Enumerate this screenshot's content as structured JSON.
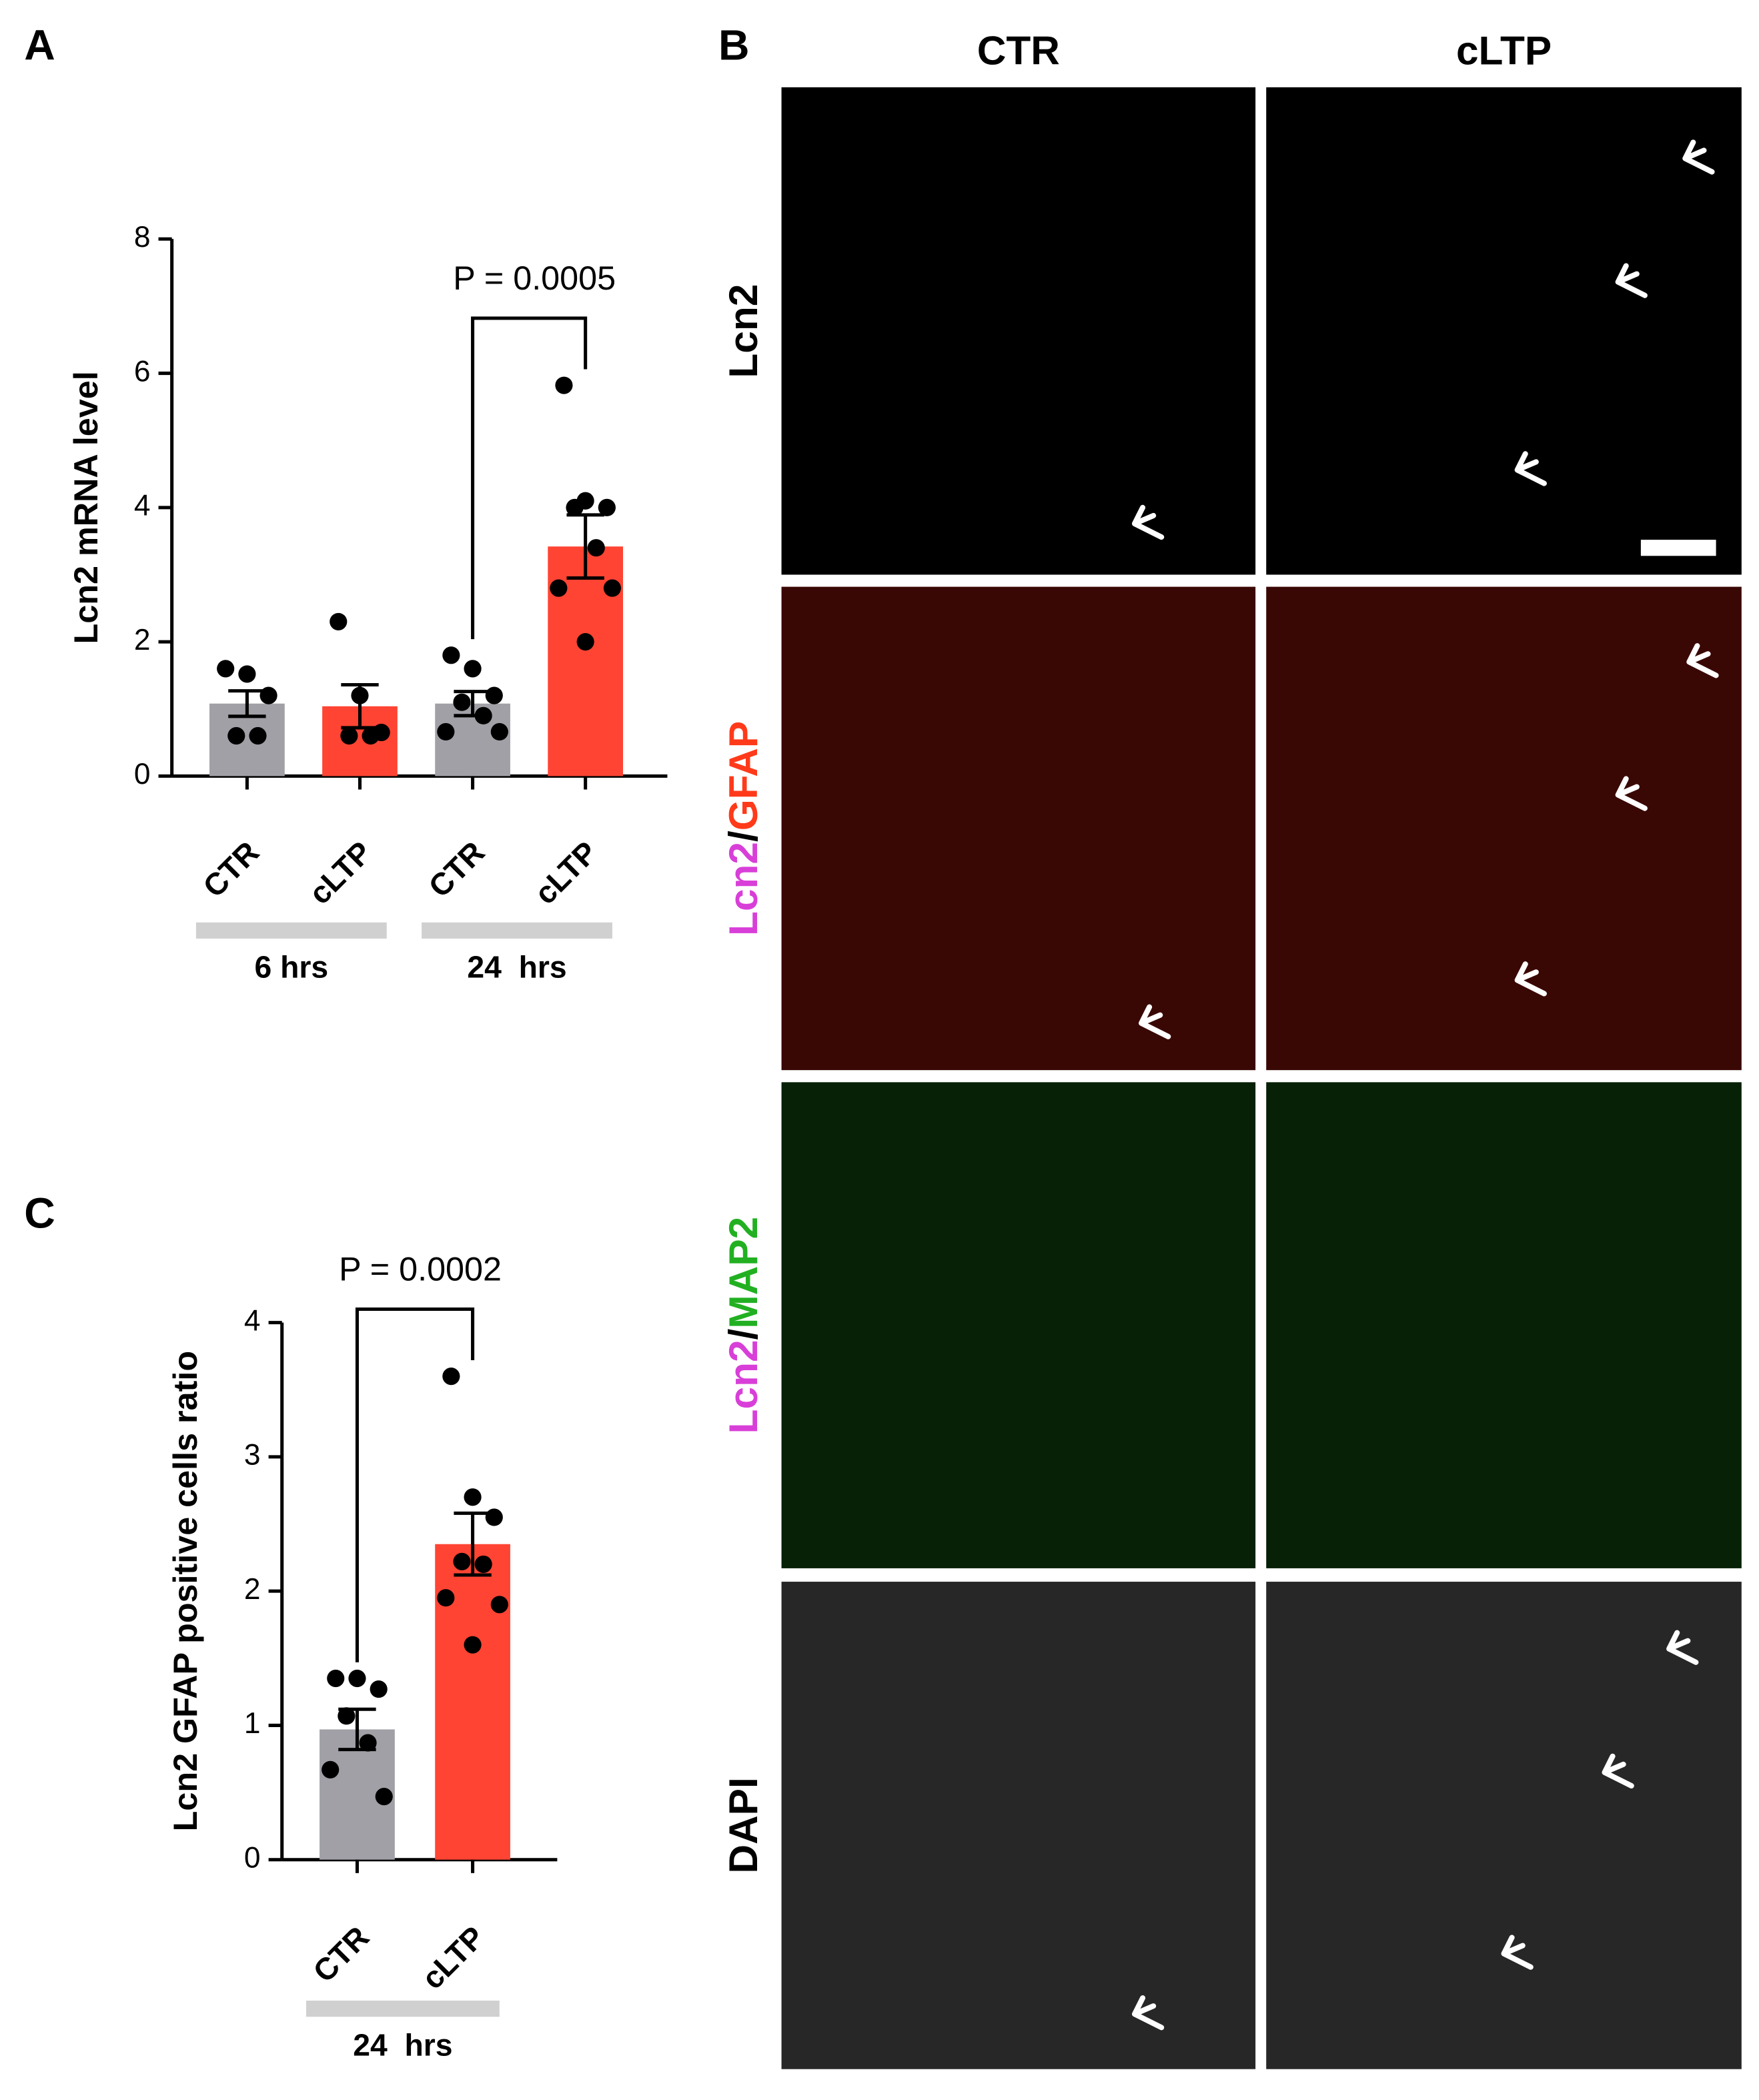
{
  "panel_labels": [
    "A",
    "B",
    "C"
  ],
  "chart_data": [
    {
      "type": "bar",
      "ylabel": "Lcn2 mRNA level",
      "categories": [
        "CTR",
        "cLTP",
        "CTR",
        "cLTP"
      ],
      "groups": [
        "6 hrs",
        "24  hrs"
      ],
      "values": [
        1.08,
        1.04,
        1.08,
        3.42
      ],
      "errors": [
        0.19,
        0.32,
        0.18,
        0.47
      ],
      "colors": [
        "#a0a0a6",
        "#ff4433",
        "#a0a0a6",
        "#ff4433"
      ],
      "points": [
        [
          1.6,
          1.52,
          1.2,
          0.6,
          0.6
        ],
        [
          2.3,
          1.2,
          0.65,
          0.6,
          0.6
        ],
        [
          1.8,
          1.6,
          1.2,
          1.1,
          0.9,
          0.66,
          0.66
        ],
        [
          5.82,
          4.1,
          4.0,
          4.0,
          3.4,
          2.8,
          2.8,
          2.0
        ]
      ],
      "annotation": "P = 0.0005",
      "ylim": [
        0,
        8
      ],
      "yticks": [
        0,
        2,
        4,
        6,
        8
      ]
    },
    {
      "type": "bar",
      "ylabel": "Lcn2 GFAP positive cells ratio",
      "categories": [
        "CTR",
        "cLTP"
      ],
      "groups": [
        "24  hrs"
      ],
      "values": [
        0.97,
        2.35
      ],
      "errors": [
        0.15,
        0.23
      ],
      "colors": [
        "#a0a0a6",
        "#ff4433"
      ],
      "points": [
        [
          1.35,
          1.35,
          1.27,
          1.07,
          0.87,
          0.67,
          0.47
        ],
        [
          3.6,
          2.7,
          2.55,
          2.22,
          2.2,
          1.95,
          1.9,
          1.6
        ]
      ],
      "annotation": "P = 0.0002",
      "ylim": [
        0,
        4
      ],
      "yticks": [
        0,
        1,
        2,
        3,
        4
      ]
    }
  ],
  "micrographs": {
    "columns": [
      "CTR",
      "cLTP"
    ],
    "rows": [
      {
        "parts": [
          "Lcn2"
        ],
        "colors": [
          "#000000"
        ],
        "background": "#000000"
      },
      {
        "parts": [
          "Lcn2",
          "/",
          "GFAP"
        ],
        "colors": [
          "#d83fd8",
          "#000000",
          "#ff3a1a"
        ],
        "background": "#3a0804"
      },
      {
        "parts": [
          "Lcn2",
          "/",
          "MAP2"
        ],
        "colors": [
          "#d83fd8",
          "#000000",
          "#22b022"
        ],
        "background": "#062106"
      },
      {
        "parts": [
          "DAPI"
        ],
        "colors": [
          "#000000"
        ],
        "background": "#272727"
      }
    ]
  }
}
